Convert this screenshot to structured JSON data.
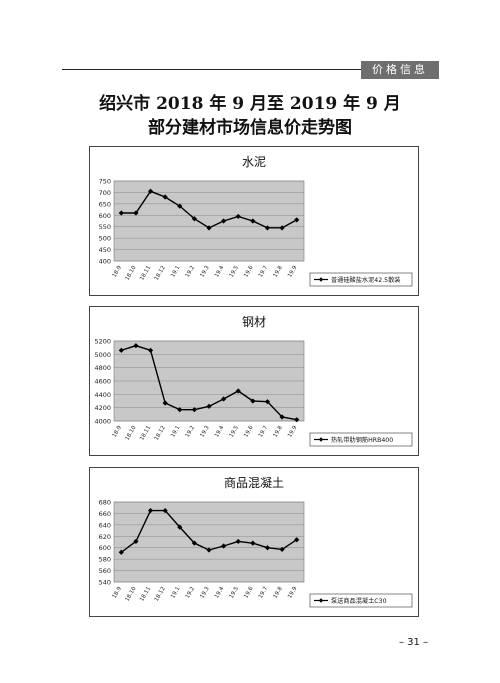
{
  "header": {
    "tag": "价格信息"
  },
  "title": {
    "line1": "绍兴市 2018 年 9 月至 2019 年 9 月",
    "line2": "部分建材市场信息价走势图"
  },
  "page_number": "– 31 –",
  "chart_data": [
    {
      "type": "line",
      "title": "水泥",
      "categories": [
        "18.9",
        "18.10",
        "18.11",
        "18.12",
        "19.1",
        "19.2",
        "19.3",
        "19.4",
        "19.5",
        "19.6",
        "19.7",
        "19.8",
        "19.9"
      ],
      "series": [
        {
          "name": "普通硅酸盐水泥42.5散装",
          "values": [
            610,
            610,
            705,
            680,
            640,
            585,
            545,
            575,
            595,
            575,
            545,
            545,
            580
          ]
        }
      ],
      "ylim": [
        400,
        750
      ],
      "yticks": [
        400,
        450,
        500,
        550,
        600,
        650,
        700,
        750
      ],
      "grid": true,
      "legend": "right",
      "colors": {
        "plot_bg": "#c8c8c8",
        "line": "#000000"
      }
    },
    {
      "type": "line",
      "title": "钢材",
      "categories": [
        "18.9",
        "18.10",
        "18.11",
        "18.12",
        "19.1",
        "19.2",
        "19.3",
        "19.4",
        "19.5",
        "19.6",
        "19.7",
        "19.8",
        "19.9"
      ],
      "series": [
        {
          "name": "热轧带肋钢筋HRB400",
          "values": [
            5060,
            5130,
            5060,
            4270,
            4170,
            4170,
            4220,
            4330,
            4450,
            4300,
            4290,
            4060,
            4020
          ]
        }
      ],
      "ylim": [
        4000,
        5200
      ],
      "yticks": [
        4000,
        4200,
        4400,
        4600,
        4800,
        5000,
        5200
      ],
      "grid": true,
      "legend": "right",
      "colors": {
        "plot_bg": "#c8c8c8",
        "line": "#000000"
      }
    },
    {
      "type": "line",
      "title": "商品混凝土",
      "categories": [
        "18.9",
        "18.10",
        "18.11",
        "18.12",
        "19.1",
        "19.2",
        "19.3",
        "19.4",
        "19.5",
        "19.6",
        "19.7",
        "19.8",
        "19.9"
      ],
      "series": [
        {
          "name": "泵送商品混凝土C30",
          "values": [
            592,
            611,
            665,
            665,
            636,
            608,
            596,
            603,
            611,
            608,
            600,
            597,
            614
          ]
        }
      ],
      "ylim": [
        540,
        680
      ],
      "yticks": [
        540,
        560,
        580,
        600,
        620,
        640,
        660,
        680
      ],
      "grid": true,
      "legend": "right",
      "colors": {
        "plot_bg": "#c8c8c8",
        "line": "#000000"
      }
    }
  ]
}
